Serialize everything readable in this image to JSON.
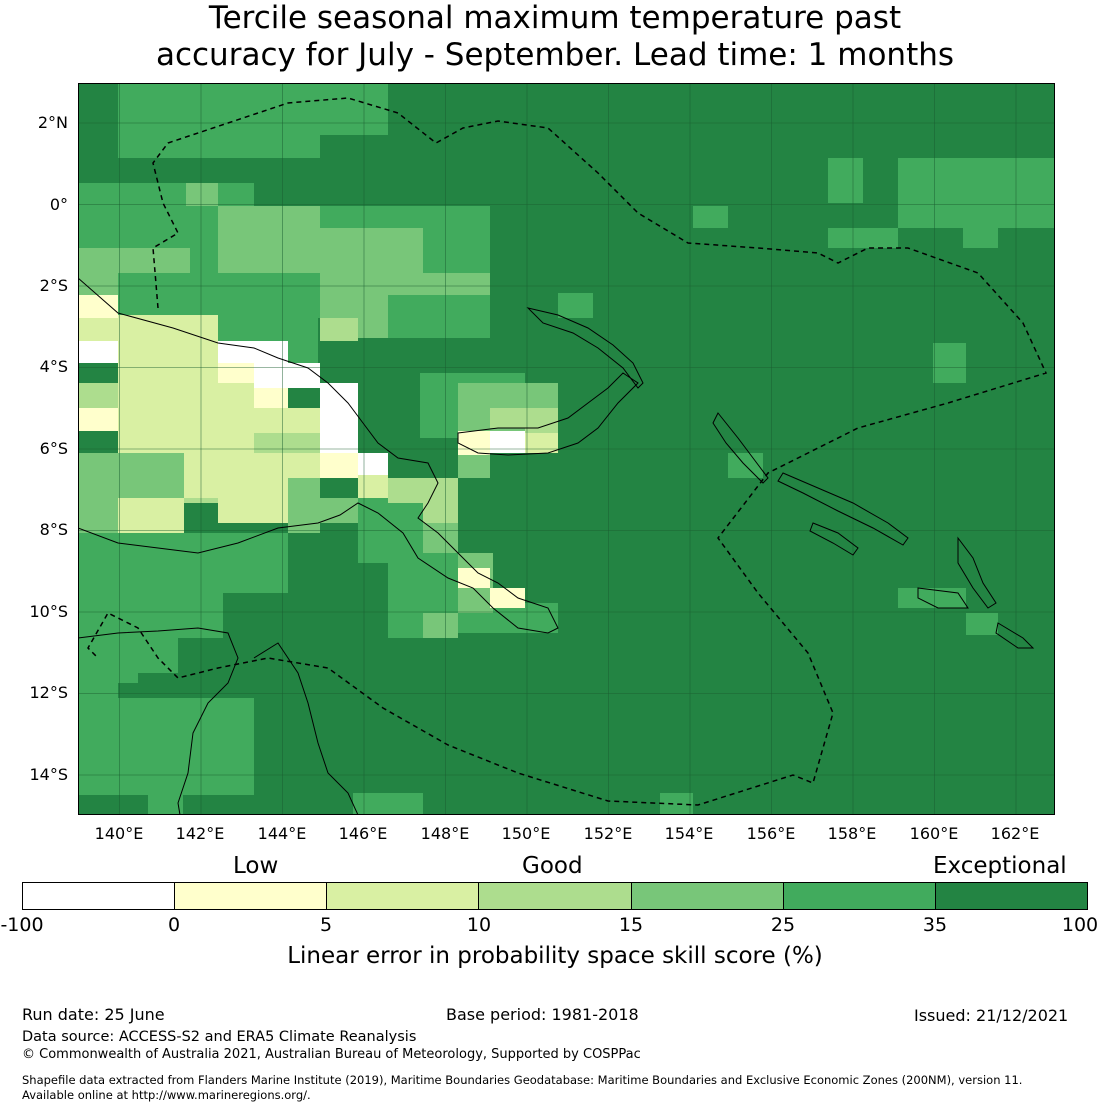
{
  "title": {
    "line1": "Tercile seasonal maximum temperature past",
    "line2": "accuracy for July - September. Lead time: 1 months"
  },
  "map": {
    "lat_labels": [
      "2°N",
      "0°",
      "2°S",
      "4°S",
      "6°S",
      "8°S",
      "10°S",
      "12°S",
      "14°S"
    ],
    "lon_labels": [
      "140°E",
      "142°E",
      "144°E",
      "146°E",
      "148°E",
      "150°E",
      "152°E",
      "154°E",
      "156°E",
      "158°E",
      "160°E",
      "162°E"
    ],
    "colors": {
      "white": "#ffffff",
      "pale_yellow": "#ffffcc",
      "light_green_yellow": "#d9f0a3",
      "light_green": "#addd8e",
      "medium_green": "#78c679",
      "green": "#41ab5d",
      "dark_green": "#238443"
    }
  },
  "legend": {
    "category_labels": [
      "Low",
      "Good",
      "Exceptional"
    ],
    "ticks": [
      "-100",
      "0",
      "5",
      "10",
      "15",
      "25",
      "35",
      "100"
    ],
    "colors": [
      "#ffffff",
      "#ffffcc",
      "#d9f0a3",
      "#addd8e",
      "#78c679",
      "#41ab5d",
      "#238443"
    ],
    "label": "Linear error in probability space skill score (%)"
  },
  "footer": {
    "run_date": "Run date: 25 June",
    "base_period": "Base period: 1981-2018",
    "issued": "Issued: 21/12/2021",
    "data_source": "Data source: ACCESS-S2 and ERA5 Climate Reanalysis",
    "copyright": "© Commonwealth of Australia 2021, Australian Bureau of Meteorology, Supported by COSPPac",
    "shapefile_line1": "Shapefile data extracted from Flanders Marine Institute (2019), Maritime Boundaries Geodatabase: Maritime Boundaries and Exclusive Economic Zones (200NM), version 11.",
    "shapefile_line2": "Available online at http://www.marineregions.org/."
  }
}
